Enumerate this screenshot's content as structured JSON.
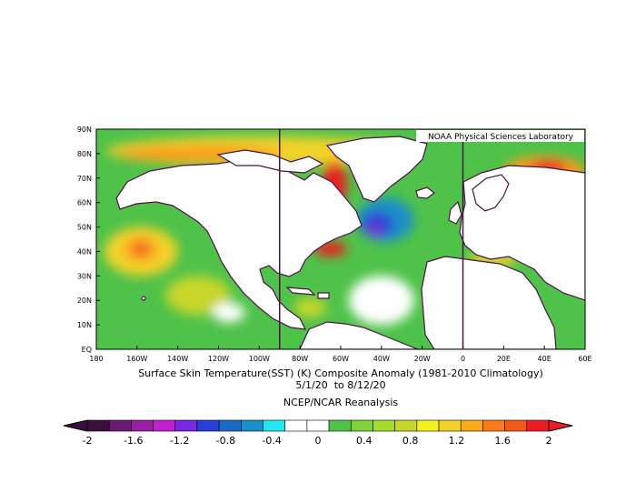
{
  "map": {
    "credit": "NOAA Physical Sciences Laboratory",
    "lat_labels": [
      "90N",
      "80N",
      "70N",
      "60N",
      "50N",
      "40N",
      "30N",
      "20N",
      "10N",
      "EQ"
    ],
    "lon_labels": [
      "180",
      "160W",
      "140W",
      "120W",
      "100W",
      "80W",
      "60W",
      "40W",
      "20W",
      "0",
      "20E",
      "40E",
      "60E"
    ],
    "extent": {
      "lon_min": -180,
      "lon_max": 60,
      "lat_min": 0,
      "lat_max": 90
    },
    "grid_lines_lon": [
      -90,
      0
    ],
    "anomaly_regions": [
      {
        "name": "arctic-band",
        "lon": -100,
        "lat": 81,
        "rx_deg": 75,
        "ry_deg": 6,
        "color": "#f3d229"
      },
      {
        "name": "arctic-band-inner",
        "lon": -130,
        "lat": 80,
        "rx_deg": 40,
        "ry_deg": 3,
        "color": "#fb9a1a"
      },
      {
        "name": "n-pacific-warm",
        "lon": -158,
        "lat": 40,
        "rx_deg": 18,
        "ry_deg": 10,
        "color": "#f3d229"
      },
      {
        "name": "n-pacific-core",
        "lon": -158,
        "lat": 41,
        "rx_deg": 8,
        "ry_deg": 5,
        "color": "#fb9a1a"
      },
      {
        "name": "n-pacific-center",
        "lon": -158,
        "lat": 41,
        "rx_deg": 3,
        "ry_deg": 2,
        "color": "#ed1c24"
      },
      {
        "name": "e-pacific-warm",
        "lon": -130,
        "lat": 22,
        "rx_deg": 16,
        "ry_deg": 8,
        "color": "#c8d62a"
      },
      {
        "name": "labrador-warm",
        "lon": -63,
        "lat": 68,
        "rx_deg": 6,
        "ry_deg": 9,
        "color": "#ed1c24"
      },
      {
        "name": "barents-warm",
        "lon": 40,
        "lat": 73,
        "rx_deg": 20,
        "ry_deg": 6,
        "color": "#fb9a1a"
      },
      {
        "name": "barents-core",
        "lon": 42,
        "lat": 74,
        "rx_deg": 9,
        "ry_deg": 3,
        "color": "#ed1c24"
      },
      {
        "name": "n-atlantic-cold",
        "lon": -38,
        "lat": 53,
        "rx_deg": 14,
        "ry_deg": 9,
        "color": "#1a90c8"
      },
      {
        "name": "n-atlantic-cold-core",
        "lon": -42,
        "lat": 51,
        "rx_deg": 8,
        "ry_deg": 5,
        "color": "#2a3fd8"
      },
      {
        "name": "n-atlantic-cold-center",
        "lon": -43,
        "lat": 49,
        "rx_deg": 3,
        "ry_deg": 2,
        "color": "#8a2ed0"
      },
      {
        "name": "gulf-stream-warm",
        "lon": -65,
        "lat": 41,
        "rx_deg": 8,
        "ry_deg": 3,
        "color": "#ed1c24"
      },
      {
        "name": "med-warm",
        "lon": 15,
        "lat": 37,
        "rx_deg": 12,
        "ry_deg": 3,
        "color": "#f3d229"
      },
      {
        "name": "caribbean-warm",
        "lon": -75,
        "lat": 17,
        "rx_deg": 8,
        "ry_deg": 4,
        "color": "#c8d62a"
      },
      {
        "name": "e-pacific-cool",
        "lon": -115,
        "lat": 15,
        "rx_deg": 8,
        "ry_deg": 4,
        "color": "#ffffff"
      },
      {
        "name": "atlantic-tropics-neutral",
        "lon": -40,
        "lat": 20,
        "rx_deg": 16,
        "ry_deg": 10,
        "color": "#ffffff"
      }
    ],
    "base_color": "#4fc24a",
    "land_color": "#ffffff",
    "coast_color": "#4b1245"
  },
  "caption": {
    "title": "Surface Skin Temperature(SST) (K) Composite Anomaly (1981-2010 Climatology)",
    "dates": "5/1/20  to 8/12/20",
    "source": "NCEP/NCAR Reanalysis"
  },
  "colorbar": {
    "ticks": [
      "-2",
      "-1.6",
      "-1.2",
      "-0.8",
      "-0.4",
      "0",
      "0.4",
      "0.8",
      "1.2",
      "1.6",
      "2"
    ],
    "colors": [
      "#3b0f3d",
      "#6b1a74",
      "#9a1ea0",
      "#c21fd0",
      "#7a28e0",
      "#2a3fd8",
      "#1a6bc8",
      "#1a90c8",
      "#22e6f0",
      "#ffffff",
      "#ffffff",
      "#4fc24a",
      "#7fd23a",
      "#a8dc2c",
      "#c8d62a",
      "#f3f21f",
      "#f3d229",
      "#fbaa1a",
      "#fb7a1a",
      "#f35a1a",
      "#ed1c24"
    ]
  }
}
